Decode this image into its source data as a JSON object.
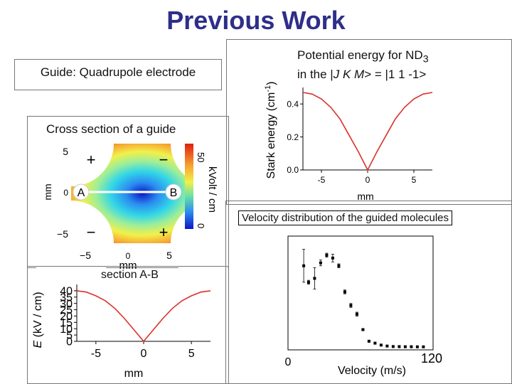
{
  "title": "Previous Work",
  "guide": {
    "label": "Guide",
    "text": ": Quadrupole electrode"
  },
  "cross_section": {
    "title": "Cross section of a guide",
    "y_label": "mm",
    "colorbar_label": "kVolt / cm",
    "colorbar_max": "50",
    "colorbar_min": "0",
    "ticks_y": [
      "5",
      "0",
      "−5"
    ],
    "ticks_x": [
      "−5",
      "0",
      "5"
    ],
    "x_label": "mm",
    "electrode_signs": [
      "+",
      "−",
      "−",
      "+"
    ],
    "point_a": "A",
    "point_b": "B"
  },
  "section_ab": {
    "title": "section A-B",
    "y_label_italic": "E",
    "y_label_rest": " (kV / cm)",
    "x_label": "mm"
  },
  "potential": {
    "title_line1": "Potential energy for ND",
    "title_sub": "3",
    "title_line2_pre": "in the |",
    "title_line2_j": "J K M",
    "title_line2_post": "> = |1 1 -1>",
    "y_label": "Stark energy (cm",
    "y_label_sup": "-1",
    "y_label_end": ")",
    "x_label": "mm"
  },
  "velocity": {
    "title": "Velocity distribution of the guided molecules",
    "x_min": "0",
    "x_max": "120",
    "x_label": "Velocity (m/s)"
  },
  "chart_data": [
    {
      "type": "line",
      "title": "section A-B",
      "xlabel": "mm",
      "ylabel": "E (kV / cm)",
      "xlim": [
        -7,
        7
      ],
      "ylim": [
        0,
        45
      ],
      "x": [
        -7,
        -6,
        -5,
        -4,
        -3,
        -2,
        -1,
        0,
        1,
        2,
        3,
        4,
        5,
        6,
        7
      ],
      "series": [
        {
          "values": [
            40,
            39,
            36,
            32,
            26,
            18,
            9,
            0,
            9,
            18,
            26,
            32,
            36,
            39,
            40
          ]
        }
      ],
      "x_ticks": [
        "-5",
        "0",
        "5"
      ],
      "y_ticks": [
        "0",
        "5",
        "10",
        "15",
        "20",
        "25",
        "30",
        "35",
        "40"
      ],
      "color": "#d9322c"
    },
    {
      "type": "line",
      "title": "Potential energy for ND3 in the |J K M> = |1 1 -1>",
      "xlabel": "mm",
      "ylabel": "Stark energy (cm-1)",
      "xlim": [
        -7,
        7
      ],
      "ylim": [
        0,
        0.5
      ],
      "x": [
        -7,
        -6,
        -5,
        -4,
        -3,
        -2,
        -1,
        0,
        1,
        2,
        3,
        4,
        5,
        6,
        7
      ],
      "series": [
        {
          "values": [
            0.47,
            0.46,
            0.43,
            0.38,
            0.31,
            0.21,
            0.11,
            0.0,
            0.11,
            0.21,
            0.31,
            0.38,
            0.43,
            0.46,
            0.47
          ]
        }
      ],
      "x_ticks": [
        "-5",
        "0",
        "5"
      ],
      "y_ticks": [
        "0.0",
        "0.2",
        "0.4"
      ],
      "color": "#d9322c"
    },
    {
      "type": "scatter",
      "title": "Velocity distribution of the guided molecules",
      "xlabel": "Velocity (m/s)",
      "xlim": [
        0,
        120
      ],
      "ylim": [
        0,
        1
      ],
      "x": [
        13,
        17,
        22,
        27,
        32,
        37,
        42,
        47,
        52,
        57,
        62,
        67,
        72,
        77,
        82,
        87,
        92,
        97,
        102,
        107,
        112
      ],
      "values": [
        0.84,
        0.67,
        0.71,
        0.87,
        0.95,
        0.92,
        0.84,
        0.57,
        0.43,
        0.34,
        0.18,
        0.06,
        0.04,
        0.02,
        0.01,
        0.005,
        0.004,
        0.003,
        0.003,
        0.002,
        0.002
      ],
      "errors": [
        0.17,
        0.02,
        0.11,
        0.03,
        0.02,
        0.04,
        0.02,
        0.02,
        0.02,
        0.02,
        0.01,
        0.01,
        0.005,
        0.003,
        0.002,
        0.001,
        0.001,
        0.001,
        0.001,
        0.001,
        0.001
      ],
      "x_ticks": [
        "0",
        "120"
      ]
    }
  ]
}
